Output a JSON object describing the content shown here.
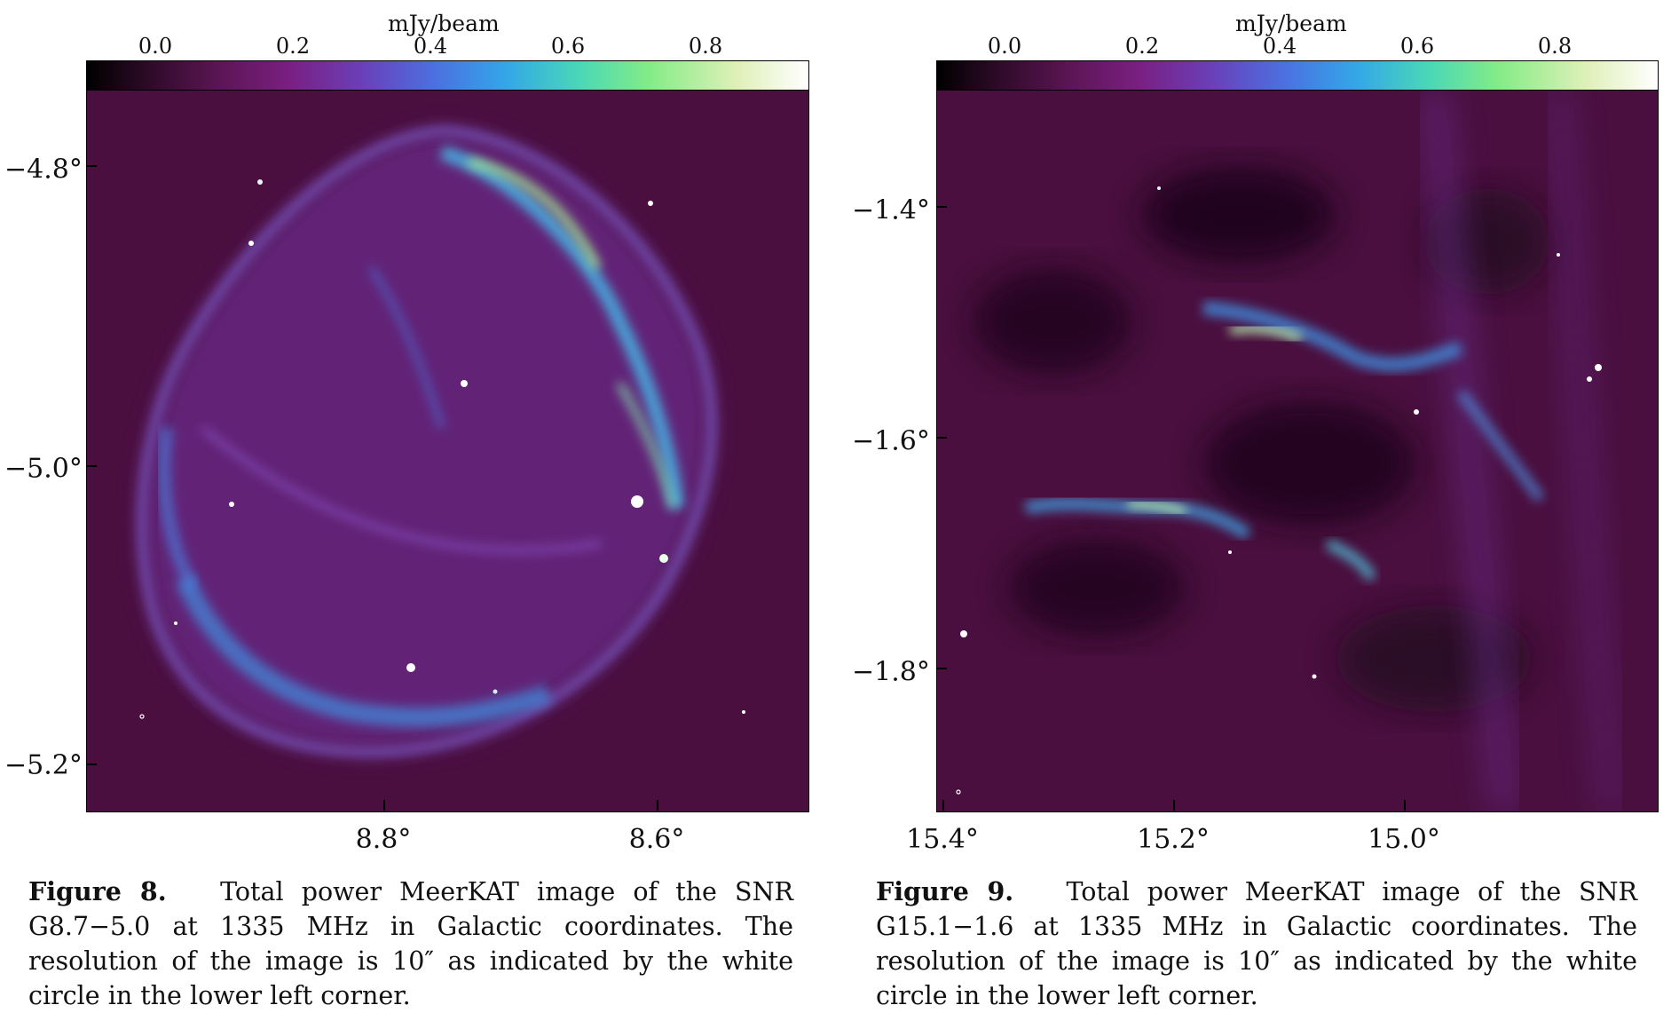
{
  "figure8": {
    "colorbar": {
      "label": "mJy/beam",
      "ticks": [
        "0.0",
        "0.2",
        "0.4",
        "0.6",
        "0.8"
      ]
    },
    "yticks": [
      "−4.8°",
      "−5.0°",
      "−5.2°"
    ],
    "xticks": [
      "8.8°",
      "8.6°"
    ],
    "caption_number": "Figure 8.",
    "caption_text": "Total power MeerKAT image of the SNR G8.7−5.0 at 1335 MHz in Galactic coordinates. The resolution of the image is 10″ as indicated by the white circle in the lower left corner."
  },
  "figure9": {
    "colorbar": {
      "label": "mJy/beam",
      "ticks": [
        "0.0",
        "0.2",
        "0.4",
        "0.6",
        "0.8"
      ]
    },
    "yticks": [
      "−1.4°",
      "−1.6°",
      "−1.8°"
    ],
    "xticks": [
      "15.4°",
      "15.2°",
      "15.0°"
    ],
    "caption_number": "Figure 9.",
    "caption_text": "Total power MeerKAT image of the SNR G15.1−1.6 at 1335 MHz in Galactic coordinates. The resolution of the image is 10″ as indicated by the white circle in the lower left corner."
  },
  "colors": {
    "background": "#4a0f3f",
    "filament": "#3fb0e8",
    "bright": "#9cf0a0"
  }
}
